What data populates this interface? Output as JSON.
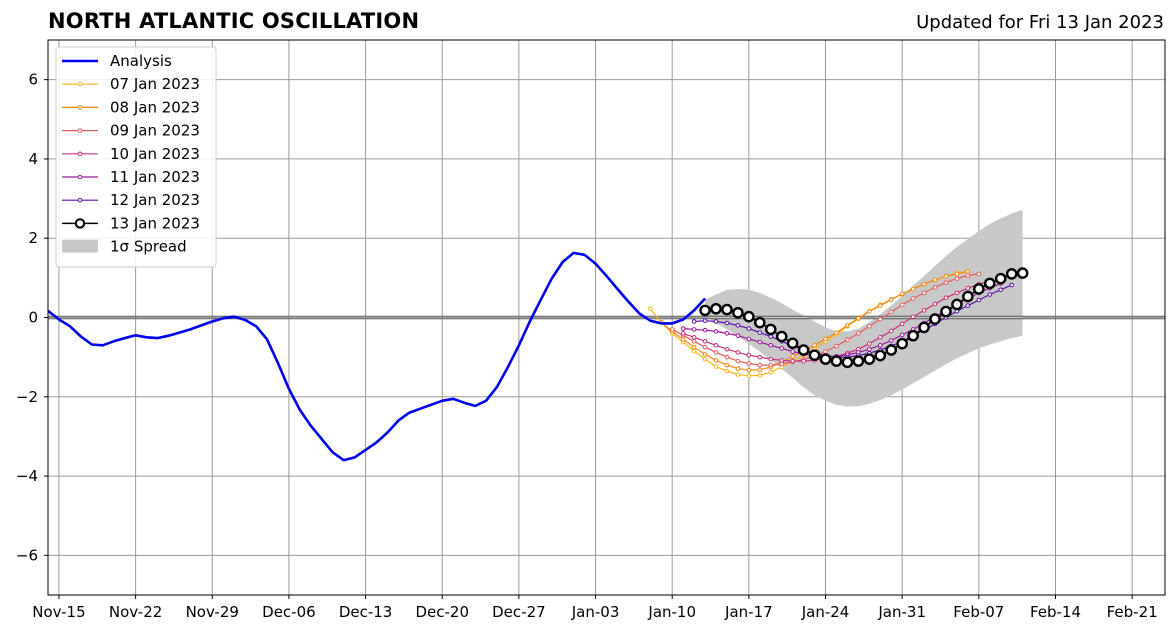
{
  "chart_data": {
    "type": "line",
    "title": "NORTH ATLANTIC OSCILLATION",
    "subtitle": "Updated for Fri 13 Jan 2023",
    "xlabel": "",
    "ylabel": "",
    "ylim": [
      -7,
      7
    ],
    "xlim": [
      "2022-11-14",
      "2023-02-24"
    ],
    "x_ticks": [
      "2022-11-15",
      "2022-11-22",
      "2022-11-29",
      "2022-12-06",
      "2022-12-13",
      "2022-12-20",
      "2022-12-27",
      "2023-01-03",
      "2023-01-10",
      "2023-01-17",
      "2023-01-24",
      "2023-01-31",
      "2023-02-07",
      "2023-02-14",
      "2023-02-21"
    ],
    "x_tick_labels": [
      "Nov-15",
      "Nov-22",
      "Nov-29",
      "Dec-06",
      "Dec-13",
      "Dec-20",
      "Dec-27",
      "Jan-03",
      "Jan-10",
      "Jan-17",
      "Jan-24",
      "Jan-31",
      "Feb-07",
      "Feb-14",
      "Feb-21"
    ],
    "y_ticks": [
      6,
      4,
      2,
      0,
      -2,
      -4,
      -6
    ],
    "y_tick_labels": [
      "6",
      "4",
      "2",
      "0",
      "−2",
      "−4",
      "−6"
    ],
    "grid": true,
    "legend_position": "top-left",
    "series": [
      {
        "name": "Analysis",
        "color": "#0000ee",
        "style": "thick-line",
        "x": [
          "2022-11-14",
          "2022-11-15",
          "2022-11-16",
          "2022-11-17",
          "2022-11-18",
          "2022-11-19",
          "2022-11-20",
          "2022-11-21",
          "2022-11-22",
          "2022-11-23",
          "2022-11-24",
          "2022-11-25",
          "2022-11-26",
          "2022-11-27",
          "2022-11-28",
          "2022-11-29",
          "2022-11-30",
          "2022-12-01",
          "2022-12-02",
          "2022-12-03",
          "2022-12-04",
          "2022-12-05",
          "2022-12-06",
          "2022-12-07",
          "2022-12-08",
          "2022-12-09",
          "2022-12-10",
          "2022-12-11",
          "2022-12-12",
          "2022-12-13",
          "2022-12-14",
          "2022-12-15",
          "2022-12-16",
          "2022-12-17",
          "2022-12-18",
          "2022-12-19",
          "2022-12-20",
          "2022-12-21",
          "2022-12-22",
          "2022-12-23",
          "2022-12-24",
          "2022-12-25",
          "2022-12-26",
          "2022-12-27",
          "2022-12-28",
          "2022-12-29",
          "2022-12-30",
          "2022-12-31",
          "2023-01-01",
          "2023-01-02",
          "2023-01-03",
          "2023-01-04",
          "2023-01-05",
          "2023-01-06",
          "2023-01-07",
          "2023-01-08",
          "2023-01-09",
          "2023-01-10",
          "2023-01-11",
          "2023-01-12",
          "2023-01-13"
        ],
        "values": [
          0.17,
          -0.05,
          -0.22,
          -0.48,
          -0.68,
          -0.7,
          -0.6,
          -0.52,
          -0.45,
          -0.5,
          -0.52,
          -0.46,
          -0.38,
          -0.3,
          -0.2,
          -0.1,
          -0.02,
          0.02,
          -0.06,
          -0.22,
          -0.55,
          -1.15,
          -1.8,
          -2.33,
          -2.73,
          -3.07,
          -3.4,
          -3.6,
          -3.53,
          -3.34,
          -3.15,
          -2.9,
          -2.6,
          -2.4,
          -2.3,
          -2.2,
          -2.1,
          -2.05,
          -2.15,
          -2.23,
          -2.1,
          -1.75,
          -1.25,
          -0.7,
          -0.1,
          0.45,
          0.98,
          1.4,
          1.63,
          1.58,
          1.36,
          1.05,
          0.72,
          0.4,
          0.1,
          -0.08,
          -0.15,
          -0.15,
          -0.05,
          0.18,
          0.48
        ]
      },
      {
        "name": "07 Jan 2023",
        "color": "#fbb61a",
        "style": "thin-dotted",
        "x": [
          "2023-01-08",
          "2023-01-09",
          "2023-01-10",
          "2023-01-11",
          "2023-01-12",
          "2023-01-13",
          "2023-01-14",
          "2023-01-15",
          "2023-01-16",
          "2023-01-17",
          "2023-01-18",
          "2023-01-19",
          "2023-01-20",
          "2023-01-21",
          "2023-01-22",
          "2023-01-23",
          "2023-01-24",
          "2023-01-25",
          "2023-01-26",
          "2023-01-27",
          "2023-01-28",
          "2023-01-29",
          "2023-01-30",
          "2023-01-31",
          "2023-02-01",
          "2023-02-02",
          "2023-02-03",
          "2023-02-04",
          "2023-02-05",
          "2023-02-06"
        ],
        "values": [
          0.22,
          -0.12,
          -0.4,
          -0.62,
          -0.85,
          -1.05,
          -1.24,
          -1.35,
          -1.44,
          -1.47,
          -1.46,
          -1.38,
          -1.25,
          -1.1,
          -0.95,
          -0.8,
          -0.6,
          -0.42,
          -0.22,
          -0.03,
          0.16,
          0.32,
          0.46,
          0.58,
          0.72,
          0.84,
          0.94,
          1.04,
          1.12,
          1.17
        ]
      },
      {
        "name": "08 Jan 2023",
        "color": "#f8850f",
        "style": "thin-dotted",
        "x": [
          "2023-01-09",
          "2023-01-10",
          "2023-01-11",
          "2023-01-12",
          "2023-01-13",
          "2023-01-14",
          "2023-01-15",
          "2023-01-16",
          "2023-01-17",
          "2023-01-18",
          "2023-01-19",
          "2023-01-20",
          "2023-01-21",
          "2023-01-22",
          "2023-01-23",
          "2023-01-24",
          "2023-01-25",
          "2023-01-26",
          "2023-01-27",
          "2023-01-28",
          "2023-01-29",
          "2023-01-30",
          "2023-01-31",
          "2023-02-01",
          "2023-02-02",
          "2023-02-03",
          "2023-02-04",
          "2023-02-05",
          "2023-02-06"
        ],
        "values": [
          -0.12,
          -0.35,
          -0.55,
          -0.75,
          -0.93,
          -1.08,
          -1.2,
          -1.29,
          -1.33,
          -1.32,
          -1.25,
          -1.12,
          -0.98,
          -0.85,
          -0.7,
          -0.54,
          -0.38,
          -0.2,
          -0.02,
          0.15,
          0.3,
          0.45,
          0.6,
          0.72,
          0.84,
          0.95,
          1.04,
          1.1,
          1.16
        ]
      },
      {
        "name": "09 Jan 2023",
        "color": "#e55c5c",
        "style": "thin-dotted",
        "x": [
          "2023-01-10",
          "2023-01-11",
          "2023-01-12",
          "2023-01-13",
          "2023-01-14",
          "2023-01-15",
          "2023-01-16",
          "2023-01-17",
          "2023-01-18",
          "2023-01-19",
          "2023-01-20",
          "2023-01-21",
          "2023-01-22",
          "2023-01-23",
          "2023-01-24",
          "2023-01-25",
          "2023-01-26",
          "2023-01-27",
          "2023-01-28",
          "2023-01-29",
          "2023-01-30",
          "2023-01-31",
          "2023-02-01",
          "2023-02-02",
          "2023-02-03",
          "2023-02-04",
          "2023-02-05",
          "2023-02-06",
          "2023-02-07"
        ],
        "values": [
          -0.3,
          -0.45,
          -0.6,
          -0.75,
          -0.88,
          -1.0,
          -1.1,
          -1.16,
          -1.2,
          -1.2,
          -1.17,
          -1.12,
          -1.06,
          -0.97,
          -0.86,
          -0.72,
          -0.56,
          -0.4,
          -0.22,
          -0.04,
          0.14,
          0.32,
          0.48,
          0.62,
          0.76,
          0.88,
          0.98,
          1.06,
          1.1
        ]
      },
      {
        "name": "10 Jan 2023",
        "color": "#c6307b",
        "style": "thin-dotted",
        "x": [
          "2023-01-11",
          "2023-01-12",
          "2023-01-13",
          "2023-01-14",
          "2023-01-15",
          "2023-01-16",
          "2023-01-17",
          "2023-01-18",
          "2023-01-19",
          "2023-01-20",
          "2023-01-21",
          "2023-01-22",
          "2023-01-23",
          "2023-01-24",
          "2023-01-25",
          "2023-01-26",
          "2023-01-27",
          "2023-01-28",
          "2023-01-29",
          "2023-01-30",
          "2023-01-31",
          "2023-02-01",
          "2023-02-02",
          "2023-02-03",
          "2023-02-04",
          "2023-02-05",
          "2023-02-06",
          "2023-02-07",
          "2023-02-08"
        ],
        "values": [
          -0.4,
          -0.5,
          -0.6,
          -0.7,
          -0.8,
          -0.88,
          -0.95,
          -1.0,
          -1.05,
          -1.08,
          -1.1,
          -1.1,
          -1.08,
          -1.04,
          -0.98,
          -0.9,
          -0.8,
          -0.66,
          -0.5,
          -0.34,
          -0.16,
          0.02,
          0.18,
          0.34,
          0.5,
          0.62,
          0.74,
          0.84,
          0.92
        ]
      },
      {
        "name": "11 Jan 2023",
        "color": "#9c179e",
        "style": "thin-dotted",
        "x": [
          "2023-01-11",
          "2023-01-12",
          "2023-01-13",
          "2023-01-14",
          "2023-01-15",
          "2023-01-16",
          "2023-01-17",
          "2023-01-18",
          "2023-01-19",
          "2023-01-20",
          "2023-01-21",
          "2023-01-22",
          "2023-01-23",
          "2023-01-24",
          "2023-01-25",
          "2023-01-26",
          "2023-01-27",
          "2023-01-28",
          "2023-01-29",
          "2023-01-30",
          "2023-01-31",
          "2023-02-01",
          "2023-02-02",
          "2023-02-03",
          "2023-02-04",
          "2023-02-05",
          "2023-02-06",
          "2023-02-07",
          "2023-02-08",
          "2023-02-09"
        ],
        "values": [
          -0.28,
          -0.3,
          -0.32,
          -0.35,
          -0.4,
          -0.46,
          -0.54,
          -0.62,
          -0.7,
          -0.78,
          -0.86,
          -0.92,
          -0.96,
          -0.98,
          -0.98,
          -0.94,
          -0.88,
          -0.8,
          -0.7,
          -0.58,
          -0.44,
          -0.3,
          -0.14,
          0.02,
          0.18,
          0.34,
          0.48,
          0.62,
          0.74,
          0.86
        ]
      },
      {
        "name": "12 Jan 2023",
        "color": "#5b0ea8",
        "style": "thin-dotted",
        "x": [
          "2023-01-12",
          "2023-01-13",
          "2023-01-14",
          "2023-01-15",
          "2023-01-16",
          "2023-01-17",
          "2023-01-18",
          "2023-01-19",
          "2023-01-20",
          "2023-01-21",
          "2023-01-22",
          "2023-01-23",
          "2023-01-24",
          "2023-01-25",
          "2023-01-26",
          "2023-01-27",
          "2023-01-28",
          "2023-01-29",
          "2023-01-30",
          "2023-01-31",
          "2023-02-01",
          "2023-02-02",
          "2023-02-03",
          "2023-02-04",
          "2023-02-05",
          "2023-02-06",
          "2023-02-07",
          "2023-02-08",
          "2023-02-09",
          "2023-02-10"
        ],
        "values": [
          -0.1,
          -0.08,
          -0.1,
          -0.14,
          -0.2,
          -0.28,
          -0.38,
          -0.48,
          -0.6,
          -0.72,
          -0.82,
          -0.9,
          -0.96,
          -1.0,
          -1.0,
          -0.96,
          -0.9,
          -0.82,
          -0.72,
          -0.6,
          -0.46,
          -0.32,
          -0.16,
          0.0,
          0.16,
          0.3,
          0.44,
          0.58,
          0.7,
          0.82
        ]
      },
      {
        "name": "13 Jan 2023",
        "color": "#000000",
        "style": "circle-markers",
        "x": [
          "2023-01-13",
          "2023-01-14",
          "2023-01-15",
          "2023-01-16",
          "2023-01-17",
          "2023-01-18",
          "2023-01-19",
          "2023-01-20",
          "2023-01-21",
          "2023-01-22",
          "2023-01-23",
          "2023-01-24",
          "2023-01-25",
          "2023-01-26",
          "2023-01-27",
          "2023-01-28",
          "2023-01-29",
          "2023-01-30",
          "2023-01-31",
          "2023-02-01",
          "2023-02-02",
          "2023-02-03",
          "2023-02-04",
          "2023-02-05",
          "2023-02-06",
          "2023-02-07",
          "2023-02-08",
          "2023-02-09",
          "2023-02-10",
          "2023-02-11"
        ],
        "values": [
          0.18,
          0.22,
          0.2,
          0.12,
          0.02,
          -0.13,
          -0.3,
          -0.48,
          -0.65,
          -0.82,
          -0.95,
          -1.05,
          -1.1,
          -1.13,
          -1.1,
          -1.05,
          -0.96,
          -0.82,
          -0.66,
          -0.46,
          -0.25,
          -0.04,
          0.15,
          0.33,
          0.53,
          0.72,
          0.86,
          0.98,
          1.1,
          1.12
        ]
      }
    ],
    "spread": {
      "name": "1σ Spread",
      "color": "#c8c8c8",
      "x": [
        "2023-01-13",
        "2023-01-14",
        "2023-01-15",
        "2023-01-16",
        "2023-01-17",
        "2023-01-18",
        "2023-01-19",
        "2023-01-20",
        "2023-01-21",
        "2023-01-22",
        "2023-01-23",
        "2023-01-24",
        "2023-01-25",
        "2023-01-26",
        "2023-01-27",
        "2023-01-28",
        "2023-01-29",
        "2023-01-30",
        "2023-01-31",
        "2023-02-01",
        "2023-02-02",
        "2023-02-03",
        "2023-02-04",
        "2023-02-05",
        "2023-02-06",
        "2023-02-07",
        "2023-02-08",
        "2023-02-09",
        "2023-02-10",
        "2023-02-11"
      ],
      "upper": [
        0.45,
        0.58,
        0.7,
        0.72,
        0.7,
        0.62,
        0.5,
        0.36,
        0.2,
        0.05,
        -0.1,
        -0.25,
        -0.35,
        -0.35,
        -0.28,
        -0.12,
        0.08,
        0.3,
        0.55,
        0.8,
        1.05,
        1.3,
        1.55,
        1.78,
        1.98,
        2.18,
        2.36,
        2.5,
        2.62,
        2.72
      ],
      "lower": [
        0.05,
        -0.15,
        -0.3,
        -0.48,
        -0.66,
        -0.86,
        -1.08,
        -1.3,
        -1.52,
        -1.76,
        -1.96,
        -2.1,
        -2.2,
        -2.25,
        -2.24,
        -2.18,
        -2.08,
        -1.96,
        -1.82,
        -1.66,
        -1.5,
        -1.34,
        -1.18,
        -1.03,
        -0.9,
        -0.78,
        -0.68,
        -0.6,
        -0.52,
        -0.46
      ]
    }
  }
}
